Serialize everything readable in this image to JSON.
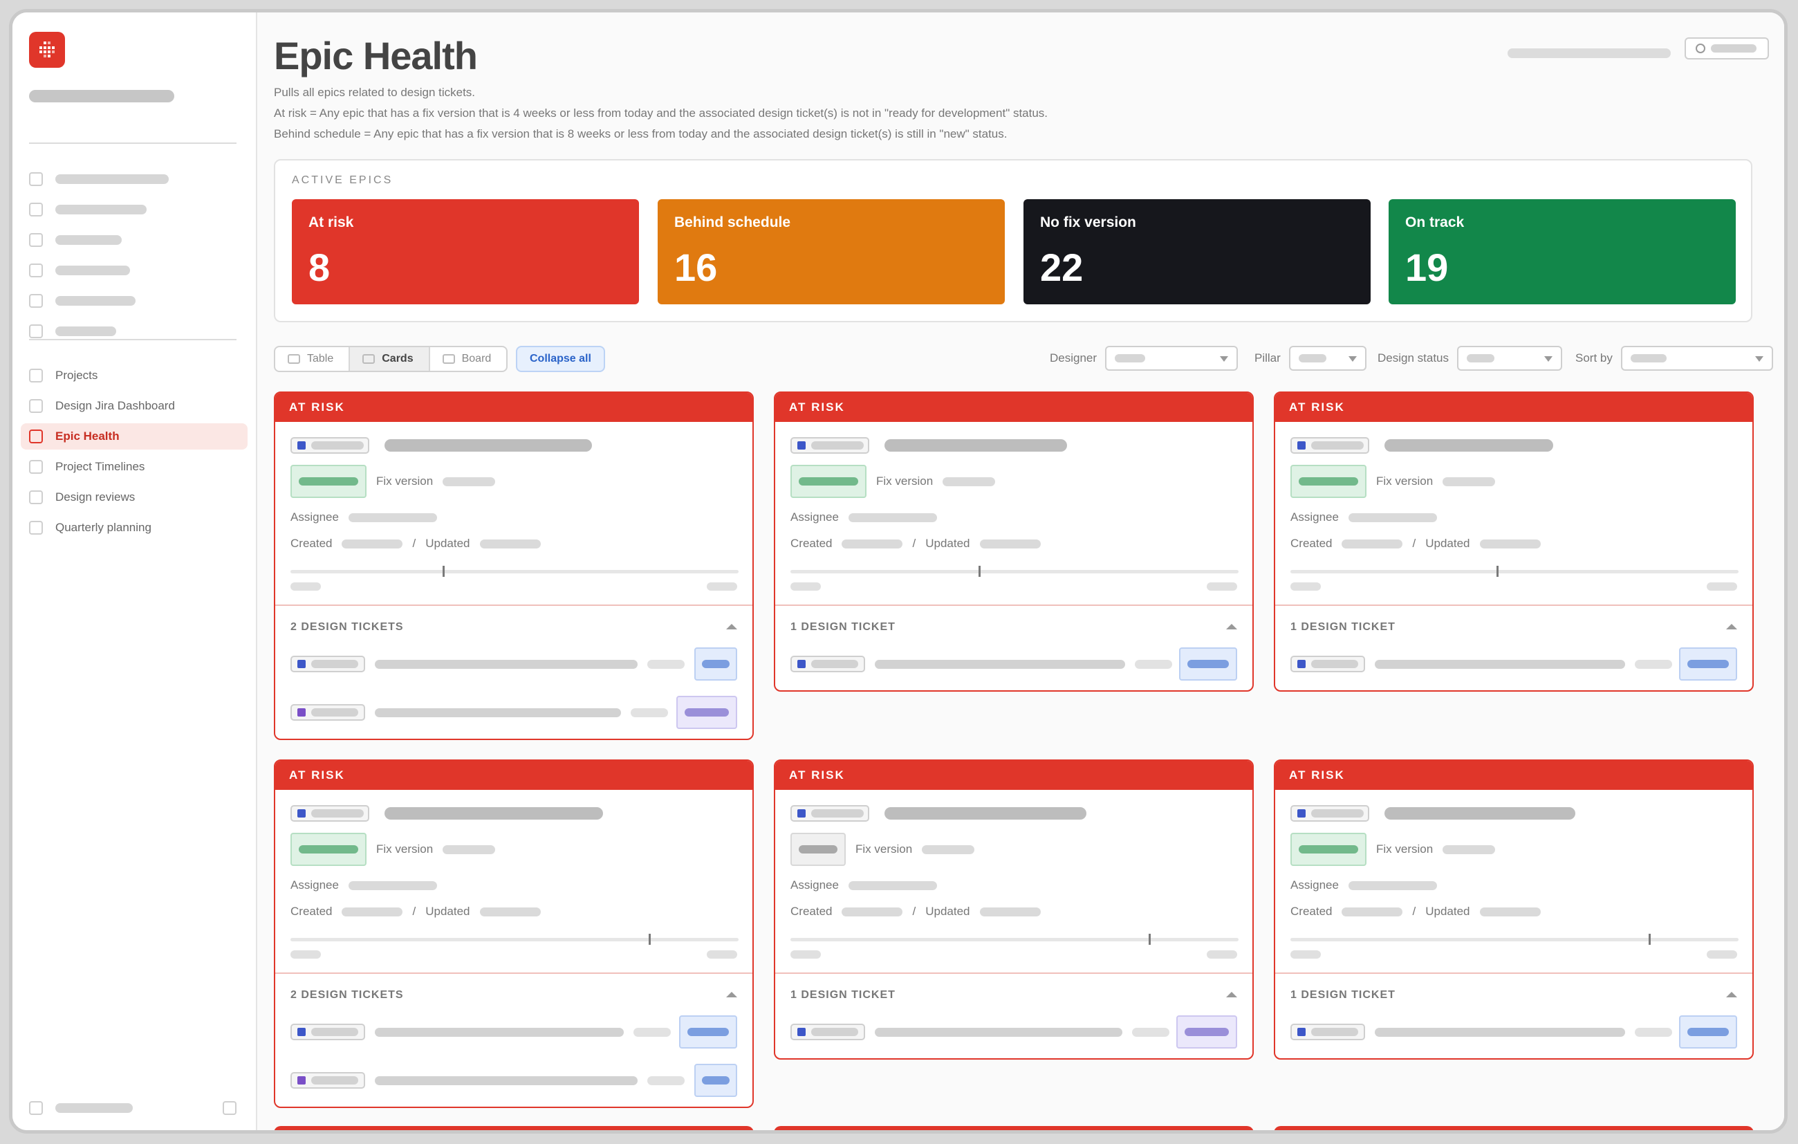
{
  "nav": {
    "items": [
      {
        "label": "Projects"
      },
      {
        "label": "Design Jira Dashboard"
      },
      {
        "label": "Epic Health"
      },
      {
        "label": "Project Timelines"
      },
      {
        "label": "Design reviews"
      },
      {
        "label": "Quarterly planning"
      }
    ]
  },
  "page": {
    "title": "Epic Health",
    "desc1": "Pulls all epics related to design tickets.",
    "desc2": "At risk = Any epic that has a fix version that is 4 weeks or less from today and the associated design ticket(s) is not in \"ready for development\" status.",
    "desc3": "Behind schedule = Any epic that has a fix version that is 8 weeks or less from today and the associated design ticket(s) is still in \"new\" status."
  },
  "active": {
    "title": "ACTIVE EPICS",
    "stats": [
      {
        "label": "At risk",
        "value": "8",
        "color": "#e0362a"
      },
      {
        "label": "Behind schedule",
        "value": "16",
        "color": "#e07a10"
      },
      {
        "label": "No fix version",
        "value": "22",
        "color": "#16171c"
      },
      {
        "label": "On track",
        "value": "19",
        "color": "#12874a"
      }
    ]
  },
  "toolbar": {
    "views": [
      "Table",
      "Cards",
      "Board"
    ],
    "collapse": "Collapse all",
    "filters": [
      "Designer",
      "Pillar",
      "Design status",
      "Sort by"
    ]
  },
  "cards": [
    {
      "status": "AT RISK",
      "fix_label": "Fix version",
      "assignee_label": "Assignee",
      "created_label": "Created",
      "slash": "/",
      "updated_label": "Updated",
      "tickets_label": "2 DESIGN TICKETS",
      "progress": 0.34
    },
    {
      "status": "AT RISK",
      "fix_label": "Fix version",
      "assignee_label": "Assignee",
      "created_label": "Created",
      "slash": "/",
      "updated_label": "Updated",
      "tickets_label": "1 DESIGN TICKET",
      "progress": 0.42
    },
    {
      "status": "AT RISK",
      "fix_label": "Fix version",
      "assignee_label": "Assignee",
      "created_label": "Created",
      "slash": "/",
      "updated_label": "Updated",
      "tickets_label": "1 DESIGN TICKET",
      "progress": 0.46
    },
    {
      "status": "AT RISK",
      "fix_label": "Fix version",
      "assignee_label": "Assignee",
      "created_label": "Created",
      "slash": "/",
      "updated_label": "Updated",
      "tickets_label": "2 DESIGN TICKETS",
      "progress": 0.8
    },
    {
      "status": "AT RISK",
      "fix_label": "Fix version",
      "assignee_label": "Assignee",
      "created_label": "Created",
      "slash": "/",
      "updated_label": "Updated",
      "tickets_label": "1 DESIGN TICKET",
      "progress": 0.8
    },
    {
      "status": "AT RISK",
      "fix_label": "Fix version",
      "assignee_label": "Assignee",
      "created_label": "Created",
      "slash": "/",
      "updated_label": "Updated",
      "tickets_label": "1 DESIGN TICKET",
      "progress": 0.8
    }
  ]
}
